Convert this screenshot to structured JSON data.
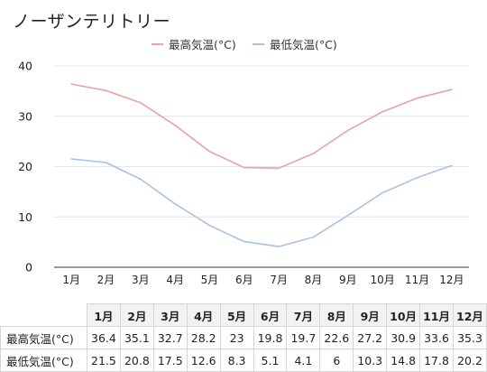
{
  "title": "ノーザンテリトリー",
  "colors": {
    "high": "#e8a3a3",
    "low": "#a9c3e4",
    "grid": "#e6e6e6",
    "axis": "#333333"
  },
  "chart_data": {
    "type": "line",
    "title": "ノーザンテリトリー",
    "categories": [
      "1月",
      "2月",
      "3月",
      "4月",
      "5月",
      "6月",
      "7月",
      "8月",
      "9月",
      "10月",
      "11月",
      "12月"
    ],
    "series": [
      {
        "name": "最高気温(°C)",
        "values": [
          36.4,
          35.1,
          32.7,
          28.2,
          23,
          19.8,
          19.7,
          22.6,
          27.2,
          30.9,
          33.6,
          35.3
        ]
      },
      {
        "name": "最低気温(°C)",
        "values": [
          21.5,
          20.8,
          17.5,
          12.6,
          8.3,
          5.1,
          4.1,
          6,
          10.3,
          14.8,
          17.8,
          20.2
        ]
      }
    ],
    "y_ticks": [
      0,
      10,
      20,
      30,
      40
    ],
    "ylim": [
      0,
      40
    ],
    "legend": "top-center",
    "grid": true
  },
  "table": {
    "headers": [
      "1月",
      "2月",
      "3月",
      "4月",
      "5月",
      "6月",
      "7月",
      "8月",
      "9月",
      "10月",
      "11月",
      "12月"
    ],
    "rows": [
      {
        "label": "最高気温(°C)",
        "values": [
          "36.4",
          "35.1",
          "32.7",
          "28.2",
          "23",
          "19.8",
          "19.7",
          "22.6",
          "27.2",
          "30.9",
          "33.6",
          "35.3"
        ]
      },
      {
        "label": "最低気温(°C)",
        "values": [
          "21.5",
          "20.8",
          "17.5",
          "12.6",
          "8.3",
          "5.1",
          "4.1",
          "6",
          "10.3",
          "14.8",
          "17.8",
          "20.2"
        ]
      }
    ]
  }
}
